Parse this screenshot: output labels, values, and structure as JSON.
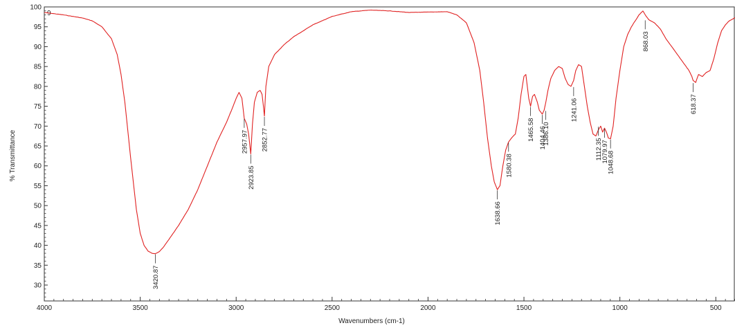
{
  "chart_data": {
    "type": "line",
    "xlabel": "Wavenumbers (cm-1)",
    "ylabel": "% Transmittance",
    "xlim": [
      4000,
      400
    ],
    "ylim": [
      26,
      100
    ],
    "x_reversed": true,
    "x_ticks": [
      4000,
      3500,
      3000,
      2500,
      2000,
      1500,
      1000,
      500
    ],
    "y_ticks": [
      30,
      35,
      40,
      45,
      50,
      55,
      60,
      65,
      70,
      75,
      80,
      85,
      90,
      95,
      100
    ],
    "corner_label": "9",
    "line_color": "#e02020",
    "grid": false,
    "series": [
      {
        "x": [
          4000,
          3900,
          3800,
          3750,
          3700,
          3650,
          3620,
          3600,
          3580,
          3550,
          3520,
          3500,
          3480,
          3460,
          3440,
          3420.87,
          3400,
          3380,
          3350,
          3300,
          3250,
          3200,
          3150,
          3100,
          3050,
          3020,
          3000,
          2985,
          2970,
          2957.97,
          2945,
          2935,
          2923.85,
          2915,
          2905,
          2890,
          2875,
          2865,
          2858,
          2852.77,
          2845,
          2830,
          2800,
          2750,
          2700,
          2600,
          2500,
          2400,
          2300,
          2200,
          2100,
          2000,
          1900,
          1850,
          1800,
          1760,
          1730,
          1710,
          1690,
          1670,
          1655,
          1638.66,
          1625,
          1610,
          1595,
          1580.38,
          1565,
          1545,
          1530,
          1515,
          1500,
          1490,
          1480,
          1475,
          1465.58,
          1455,
          1445,
          1430,
          1420,
          1404.46,
          1395,
          1386.1,
          1375,
          1360,
          1340,
          1320,
          1300,
          1285,
          1270,
          1255,
          1241.06,
          1230,
          1215,
          1200,
          1185,
          1170,
          1155,
          1140,
          1125,
          1112.35,
          1100,
          1090,
          1079.97,
          1070,
          1060,
          1048.68,
          1035,
          1020,
          1000,
          980,
          960,
          940,
          920,
          900,
          880,
          868.03,
          850,
          820,
          790,
          760,
          730,
          700,
          670,
          640,
          625,
          618.37,
          605,
          590,
          570,
          550,
          530,
          510,
          490,
          470,
          450,
          430,
          410,
          400
        ],
        "y": [
          98.6,
          98.0,
          97.2,
          96.5,
          95.0,
          92.0,
          88.0,
          83.0,
          76.0,
          62.0,
          49.0,
          43.0,
          40.0,
          38.6,
          38.0,
          37.9,
          38.4,
          39.5,
          41.5,
          45.0,
          49.0,
          54.0,
          60.0,
          66.0,
          71.0,
          74.5,
          77.0,
          78.5,
          77.0,
          72.0,
          70.5,
          68.0,
          63.0,
          70.5,
          76.0,
          78.5,
          79.0,
          78.0,
          75.0,
          72.5,
          80.0,
          85.0,
          88.0,
          90.5,
          92.5,
          95.5,
          97.6,
          98.8,
          99.2,
          99.0,
          98.6,
          98.7,
          98.8,
          98.0,
          96.0,
          91.0,
          84.0,
          76.0,
          67.0,
          60.0,
          56.0,
          54.0,
          55.0,
          60.0,
          64.0,
          66.0,
          67.0,
          68.0,
          72.0,
          78.0,
          82.5,
          83.0,
          79.0,
          77.0,
          75.0,
          77.5,
          78.0,
          76.0,
          74.0,
          73.0,
          74.0,
          76.0,
          79.0,
          82.0,
          84.0,
          85.0,
          84.5,
          82.0,
          80.5,
          80.0,
          81.5,
          84.0,
          85.5,
          85.0,
          80.0,
          75.0,
          71.0,
          68.0,
          67.5,
          69.0,
          70.0,
          68.5,
          69.5,
          68.5,
          67.0,
          66.8,
          70.0,
          77.0,
          84.0,
          90.0,
          93.0,
          95.0,
          96.5,
          98.0,
          99.0,
          98.0,
          96.8,
          96.0,
          94.5,
          92.0,
          90.0,
          88.0,
          86.0,
          84.0,
          82.5,
          81.5,
          81.0,
          83.0,
          82.5,
          83.5,
          84.0,
          87.0,
          91.0,
          94.0,
          95.5,
          96.5,
          97.0,
          97.3
        ]
      }
    ],
    "annotations": [
      {
        "label": "3420.87",
        "x": 3420.87,
        "y": 37.9
      },
      {
        "label": "2957.97",
        "x": 2957.97,
        "y": 72.0
      },
      {
        "label": "2923.85",
        "x": 2923.85,
        "y": 63.0
      },
      {
        "label": "2852.77",
        "x": 2852.77,
        "y": 72.5
      },
      {
        "label": "1638.66",
        "x": 1638.66,
        "y": 54.0
      },
      {
        "label": "1580.38",
        "x": 1580.38,
        "y": 66.0
      },
      {
        "label": "1465.58",
        "x": 1465.58,
        "y": 75.0
      },
      {
        "label": "1404.46",
        "x": 1404.46,
        "y": 73.0
      },
      {
        "label": "1386.10",
        "x": 1386.1,
        "y": 74.0
      },
      {
        "label": "1241.06",
        "x": 1241.06,
        "y": 80.0
      },
      {
        "label": "1112.35",
        "x": 1112.35,
        "y": 70.0
      },
      {
        "label": "1079.97",
        "x": 1079.97,
        "y": 69.5
      },
      {
        "label": "1048.68",
        "x": 1048.68,
        "y": 66.8
      },
      {
        "label": "868.03",
        "x": 868.03,
        "y": 96.8
      },
      {
        "label": "618.37",
        "x": 618.37,
        "y": 81.0
      }
    ]
  }
}
